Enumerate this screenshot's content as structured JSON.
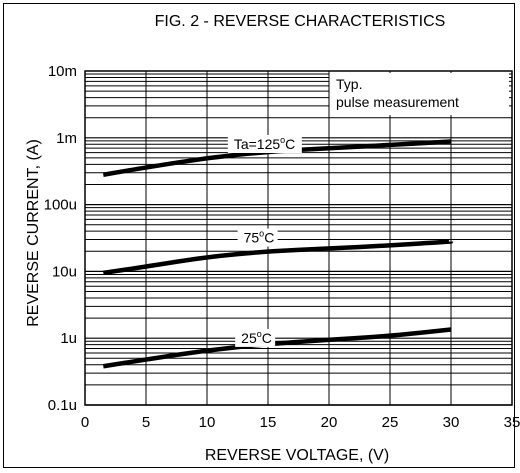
{
  "chart_data": {
    "type": "line",
    "title": "FIG. 2 - REVERSE CHARACTERISTICS",
    "xlabel": "REVERSE VOLTAGE, (V)",
    "ylabel": "REVERSE CURRENT, (A)",
    "x_scale": "linear",
    "y_scale": "log",
    "xlim": [
      0,
      35
    ],
    "ylim_amperes": [
      1e-07,
      0.01
    ],
    "grid": true,
    "x_ticks": [
      0,
      5,
      10,
      15,
      20,
      25,
      30,
      35
    ],
    "x_tick_labels": [
      "0",
      "5",
      "10",
      "15",
      "20",
      "25",
      "30",
      "35"
    ],
    "y_ticks": [
      1e-07,
      1e-06,
      1e-05,
      0.0001,
      0.001,
      0.01
    ],
    "y_tick_labels": [
      "0.1u",
      "1u",
      "10u",
      "100u",
      "1m",
      "10m"
    ],
    "legend_note": [
      "Typ.",
      "pulse measurement"
    ],
    "series": [
      {
        "name": "Ta=125°C",
        "x": [
          1.5,
          5,
          10,
          15,
          20,
          25,
          30
        ],
        "y": [
          0.00028,
          0.00036,
          0.0005,
          0.00062,
          0.0007,
          0.00078,
          0.00088
        ]
      },
      {
        "name": "75°C",
        "x": [
          1.5,
          5,
          10,
          15,
          20,
          25,
          30
        ],
        "y": [
          9.5e-06,
          1.18e-05,
          1.65e-05,
          2e-05,
          2.2e-05,
          2.45e-05,
          2.8e-05
        ]
      },
      {
        "name": "25°C",
        "x": [
          1.5,
          5,
          10,
          15,
          20,
          25,
          30
        ],
        "y": [
          3.8e-07,
          4.8e-07,
          6.6e-07,
          8.2e-07,
          9.5e-07,
          1.08e-06,
          1.35e-06
        ]
      }
    ],
    "series_labels": [
      "Ta=125",
      "75",
      "25"
    ],
    "degree_unit": [
      "o",
      "C"
    ],
    "line_color": "#000000"
  }
}
